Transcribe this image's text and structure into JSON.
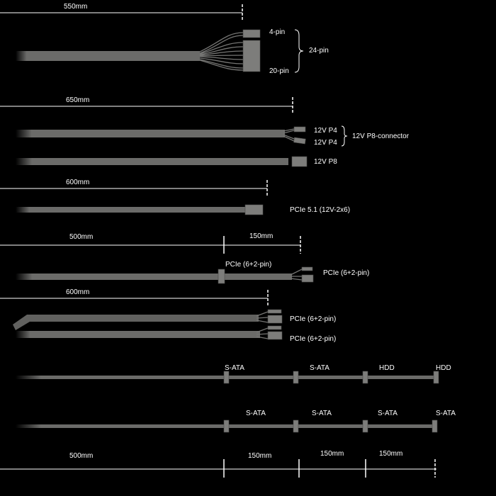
{
  "colors": {
    "background": "#000000",
    "cable": "#6b6b69",
    "text": "#ffffff"
  },
  "dimensions": {
    "d1": "550mm",
    "d2": "650mm",
    "d3": "600mm",
    "d4a": "500mm",
    "d4b": "150mm",
    "d5": "600mm",
    "bottom": [
      "500mm",
      "150mm",
      "150mm",
      "150mm"
    ]
  },
  "cables": {
    "atx": {
      "pin4": "4-pin",
      "pin20": "20-pin",
      "group": "24-pin"
    },
    "eps": {
      "p4a": "12V P4",
      "p4b": "12V P4",
      "group": "12V P8-connector",
      "p8": "12V P8"
    },
    "pcie5": {
      "label": "PCIe 5.1 (12V-2x6)"
    },
    "pcie_daisy": {
      "mid": "PCIe (6+2-pin)",
      "end": "PCIe (6+2-pin)"
    },
    "pcie_pair": {
      "a": "PCIe (6+2-pin)",
      "b": "PCIe (6+2-pin)"
    },
    "sata1": [
      "S-ATA",
      "S-ATA",
      "HDD",
      "HDD"
    ],
    "sata2": [
      "S-ATA",
      "S-ATA",
      "S-ATA",
      "S-ATA"
    ]
  }
}
